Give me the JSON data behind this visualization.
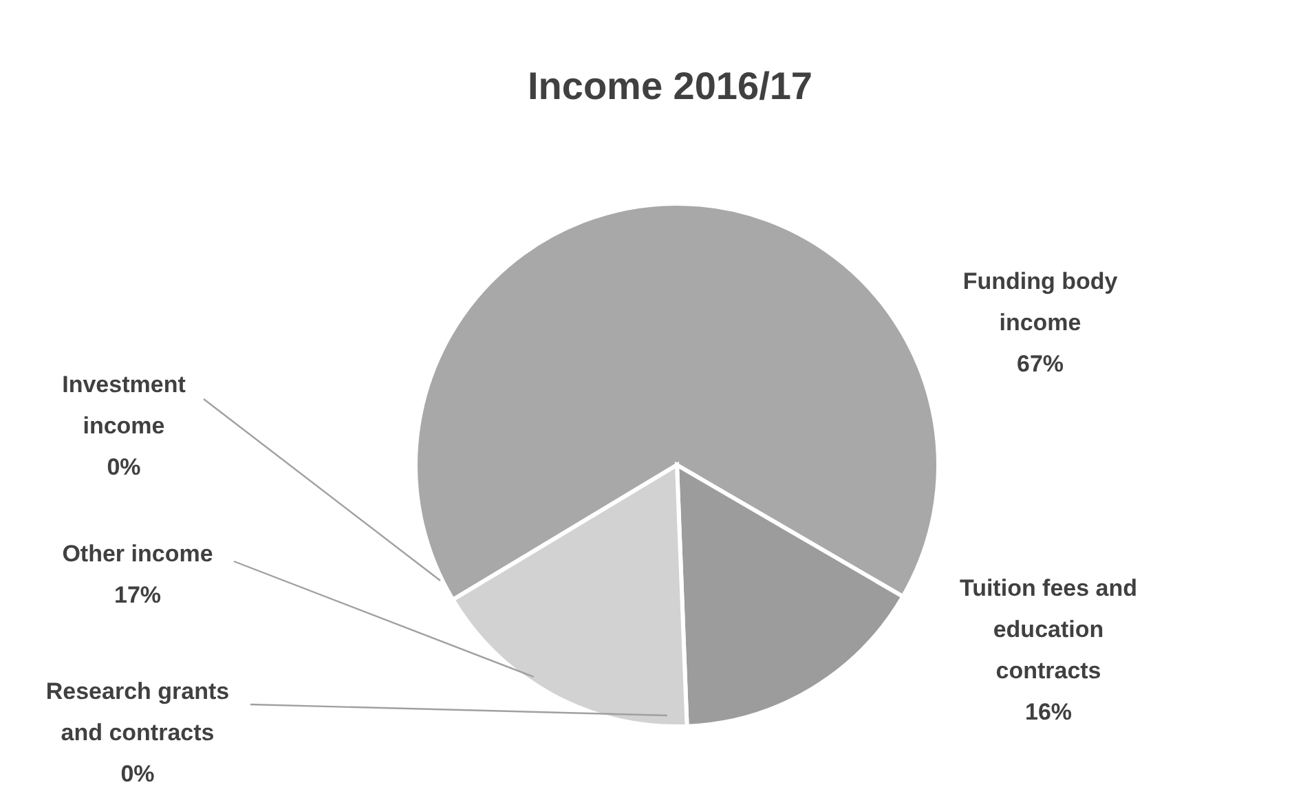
{
  "chart_data": {
    "type": "pie",
    "title": "Income 2016/17",
    "categories": [
      "Funding body income",
      "Tuition fees and education contracts",
      "Research grants and contracts",
      "Other income",
      "Investment income"
    ],
    "values": [
      67,
      16,
      0,
      17,
      0
    ],
    "value_labels": [
      "67%",
      "16%",
      "0%",
      "17%",
      "0%"
    ],
    "colors": [
      "#a8a8a8",
      "#9c9c9c",
      "#bdbdbd",
      "#d2d2d2",
      "#b0b0b0"
    ],
    "legend": false
  }
}
